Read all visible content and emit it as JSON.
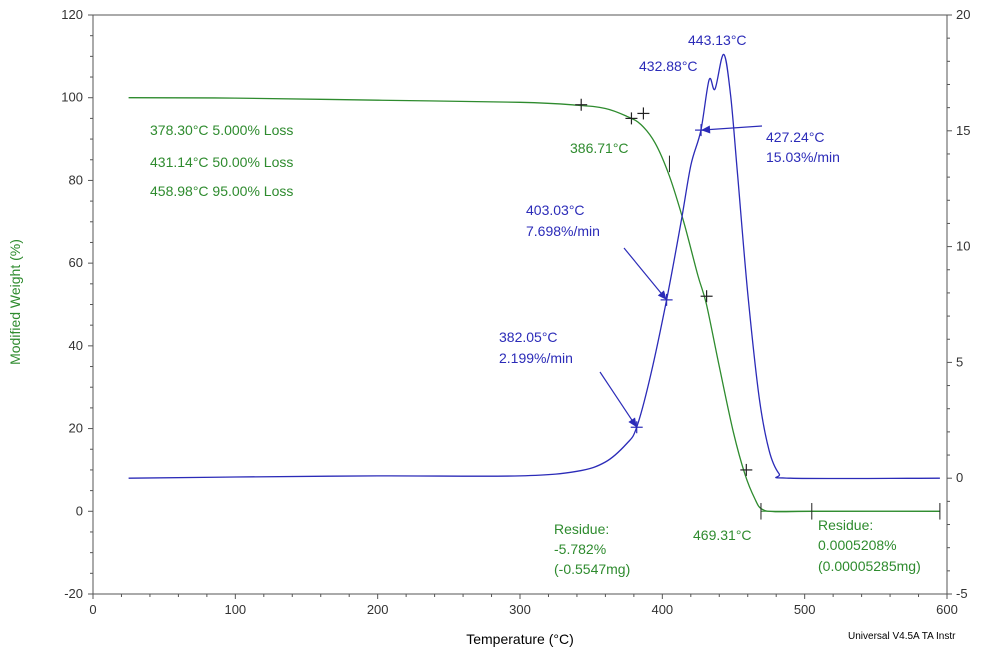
{
  "chart_data": {
    "type": "line",
    "xlabel": "Temperature (°C)",
    "ylabel": "Modified Weight (%)",
    "xlim": [
      0,
      600
    ],
    "ylim_left": [
      -20,
      120
    ],
    "ylim_right": [
      -5,
      20
    ],
    "x_ticks": [
      "0",
      "100",
      "200",
      "300",
      "400",
      "500",
      "600"
    ],
    "y_ticks_left": [
      "-20",
      "0",
      "20",
      "40",
      "60",
      "80",
      "100",
      "120"
    ],
    "y_ticks_right": [
      "-5",
      "0",
      "5",
      "10",
      "15",
      "20"
    ],
    "colors": {
      "weight": "#2e8b2e",
      "derivative": "#2b2bb8",
      "axis": "#555555"
    },
    "grid": false,
    "series": [
      {
        "axis": "left",
        "color": "#2e8b2e",
        "x": [
          25,
          100,
          200,
          300,
          340,
          360,
          375,
          385,
          395,
          405,
          415,
          425,
          431,
          440,
          450,
          458,
          465,
          470,
          480,
          505,
          595
        ],
        "values": [
          100,
          99.9,
          99.4,
          98.9,
          98.2,
          97.4,
          95.5,
          93.5,
          89,
          81,
          70,
          57,
          50,
          35,
          19,
          9,
          3,
          0.5,
          -0.1,
          0,
          0
        ]
      },
      {
        "axis": "right",
        "color": "#2b2bb8",
        "x": [
          25,
          100,
          200,
          300,
          340,
          360,
          375,
          382,
          392,
          403,
          413,
          420,
          427,
          432.88,
          437,
          443.13,
          448,
          453,
          460,
          468,
          475,
          482,
          490,
          595
        ],
        "values": [
          0,
          0.05,
          0.1,
          0.1,
          0.3,
          0.7,
          1.5,
          2.2,
          4.5,
          7.7,
          11,
          13.5,
          15,
          17.2,
          16.8,
          18.3,
          16.5,
          13,
          8,
          3.5,
          1.2,
          0.2,
          0,
          0
        ]
      }
    ],
    "weight_annotations": [
      "378.30°C 5.000% Loss",
      "431.14°C 50.00% Loss",
      "458.98°C 95.00% Loss"
    ],
    "labels": {
      "onset": "386.71°C",
      "end": "469.31°C",
      "residue_left": [
        "Residue:",
        "-5.782%",
        "(-0.5547mg)"
      ],
      "residue_right": [
        "Residue:",
        "0.0005208%",
        "(0.00005285mg)"
      ],
      "peak_a": "432.88°C",
      "peak_b": "443.13°C",
      "deriv_a": [
        "382.05°C",
        "2.199%/min"
      ],
      "deriv_b": [
        "403.03°C",
        "7.698%/min"
      ],
      "deriv_c": [
        "427.24°C",
        "15.03%/min"
      ]
    },
    "footer": "Universal V4.5A TA Instr"
  }
}
